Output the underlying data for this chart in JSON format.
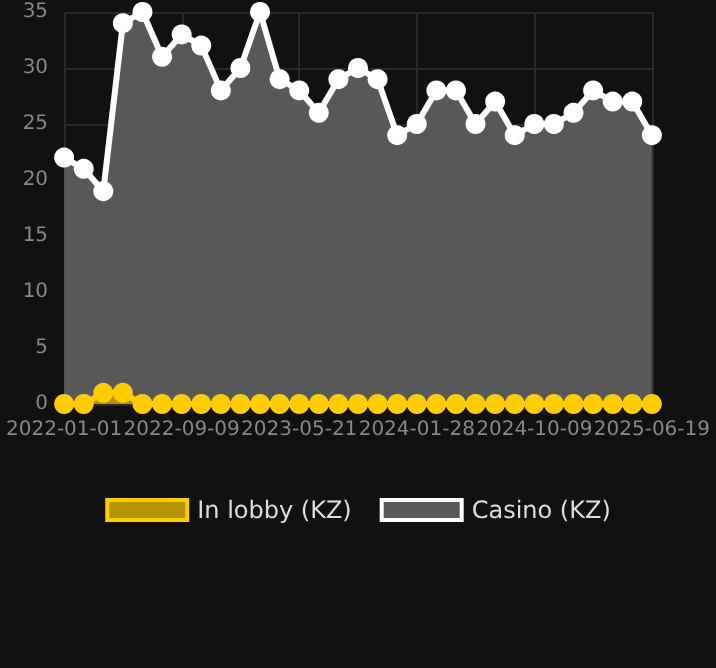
{
  "chart_data": {
    "type": "area",
    "categories": [
      "2022-01-01",
      null,
      null,
      null,
      null,
      null,
      "2022-09-09",
      null,
      null,
      null,
      null,
      null,
      "2023-05-21",
      null,
      null,
      null,
      null,
      null,
      "2024-01-28",
      null,
      null,
      null,
      null,
      null,
      "2024-10-09",
      null,
      null,
      null,
      null,
      null,
      "2025-06-19"
    ],
    "series": [
      {
        "name": "In lobby (KZ)",
        "color": "#ffcc00",
        "values": [
          0,
          0,
          1,
          1,
          0,
          0,
          0,
          0,
          0,
          0,
          0,
          0,
          0,
          0,
          0,
          0,
          0,
          0,
          0,
          0,
          0,
          0,
          0,
          0,
          0,
          0,
          0,
          0,
          0,
          0,
          0
        ]
      },
      {
        "name": "Casino (KZ)",
        "color": "#ffffff",
        "values": [
          22,
          21,
          19,
          34,
          35,
          31,
          33,
          32,
          28,
          30,
          35,
          29,
          28,
          26,
          29,
          30,
          29,
          24,
          25,
          28,
          28,
          25,
          27,
          24,
          25,
          25,
          26,
          28,
          27,
          27,
          24
        ]
      }
    ],
    "ylim": [
      0,
      35
    ],
    "yticks": [
      0,
      5,
      10,
      15,
      20,
      25,
      30,
      35
    ],
    "grid": true,
    "legend": "bottom",
    "marker": "circle"
  }
}
